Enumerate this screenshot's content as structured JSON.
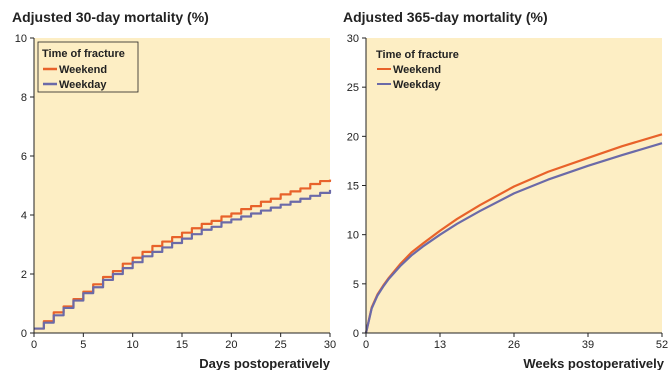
{
  "colors": {
    "plot_background": "#fdeec4",
    "weekend": "#e8622a",
    "weekday": "#6b6aa8"
  },
  "chart_data": [
    {
      "type": "line",
      "step": true,
      "title": "Adjusted 30-day mortality (%)",
      "xlabel": "Days postoperatively",
      "ylabel": "",
      "xlim": [
        0,
        30
      ],
      "ylim": [
        0,
        10
      ],
      "xticks": [
        0,
        5,
        10,
        15,
        20,
        25,
        30
      ],
      "yticks": [
        0,
        2,
        4,
        6,
        8,
        10
      ],
      "grid": false,
      "legend": {
        "title": "Time of fracture",
        "position": "top-left"
      },
      "x": [
        0,
        1,
        2,
        3,
        4,
        5,
        6,
        7,
        8,
        9,
        10,
        11,
        12,
        13,
        14,
        15,
        16,
        17,
        18,
        19,
        20,
        21,
        22,
        23,
        24,
        25,
        26,
        27,
        28,
        29,
        30
      ],
      "series": [
        {
          "name": "Weekend",
          "color": "#e8622a",
          "values": [
            0.15,
            0.4,
            0.7,
            0.9,
            1.15,
            1.4,
            1.65,
            1.9,
            2.1,
            2.35,
            2.55,
            2.75,
            2.95,
            3.1,
            3.25,
            3.4,
            3.55,
            3.7,
            3.8,
            3.95,
            4.05,
            4.2,
            4.3,
            4.45,
            4.55,
            4.7,
            4.8,
            4.9,
            5.05,
            5.15,
            5.2
          ]
        },
        {
          "name": "Weekday",
          "color": "#6b6aa8",
          "values": [
            0.15,
            0.35,
            0.6,
            0.85,
            1.1,
            1.35,
            1.55,
            1.8,
            2.0,
            2.2,
            2.4,
            2.6,
            2.75,
            2.9,
            3.05,
            3.2,
            3.35,
            3.5,
            3.6,
            3.75,
            3.85,
            3.95,
            4.05,
            4.15,
            4.25,
            4.35,
            4.45,
            4.55,
            4.65,
            4.75,
            4.85
          ]
        }
      ]
    },
    {
      "type": "line",
      "step": false,
      "title": "Adjusted 365-day mortality (%)",
      "xlabel": "Weeks postoperatively",
      "ylabel": "",
      "xlim": [
        0,
        52
      ],
      "ylim": [
        0,
        30
      ],
      "xticks": [
        0,
        13,
        26,
        39,
        52
      ],
      "yticks": [
        0,
        5,
        10,
        15,
        20,
        25,
        30
      ],
      "grid": false,
      "legend": {
        "title": "Time of fracture",
        "position": "top-left"
      },
      "x": [
        0,
        1,
        2,
        3,
        4,
        6,
        8,
        10,
        13,
        16,
        20,
        26,
        32,
        39,
        45,
        52
      ],
      "series": [
        {
          "name": "Weekend",
          "color": "#e8622a",
          "values": [
            0,
            2.6,
            3.9,
            4.8,
            5.6,
            7.0,
            8.2,
            9.1,
            10.4,
            11.6,
            13.0,
            14.9,
            16.4,
            17.8,
            19.0,
            20.2
          ]
        },
        {
          "name": "Weekday",
          "color": "#6b6aa8",
          "values": [
            0,
            2.5,
            3.8,
            4.7,
            5.5,
            6.8,
            7.9,
            8.8,
            10.0,
            11.1,
            12.4,
            14.2,
            15.6,
            17.0,
            18.1,
            19.3
          ]
        }
      ]
    }
  ]
}
